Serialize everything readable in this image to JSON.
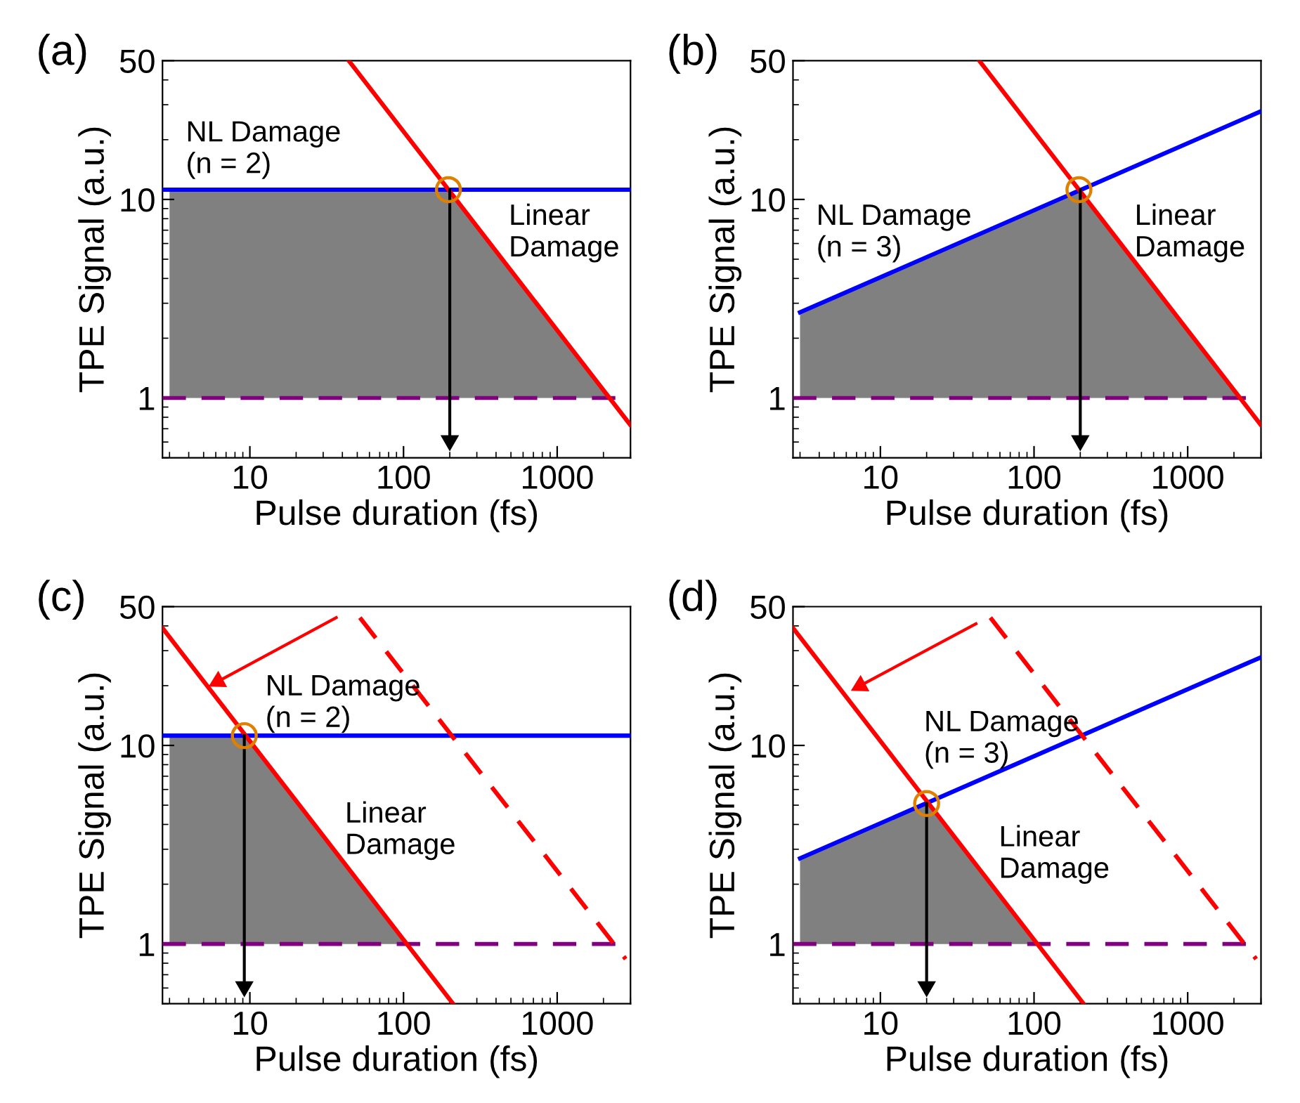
{
  "chart_data": [
    {
      "type": "line",
      "title": "(a)",
      "xlabel": "Pulse duration (fs)",
      "ylabel": "TPE Signal (a.u.)",
      "log": "xy",
      "xlim": [
        2.7,
        3000
      ],
      "ylim": [
        0.5,
        50
      ],
      "xticks": [
        10,
        100,
        1000
      ],
      "yticks": [
        1,
        10,
        50
      ],
      "grid": false,
      "legend": false,
      "series": [
        {
          "type": "area",
          "color": "#808080",
          "x": [
            3,
            196,
            2210
          ],
          "values": [
            11.2,
            11.2,
            1
          ]
        },
        {
          "color": "#0000ff",
          "x": [
            2.7,
            3000
          ],
          "values": [
            11.2,
            11.2
          ]
        },
        {
          "color": "#ff0000",
          "x": [
            44,
            3000
          ],
          "values": [
            50,
            0.73
          ]
        },
        {
          "color": "#000000",
          "marker": "triangle",
          "x": [
            200,
            200
          ],
          "values": [
            11.2,
            0.61
          ]
        },
        {
          "type": "scatter",
          "color": "#e08000",
          "marker": "circle",
          "x": [
            196
          ],
          "values": [
            11.2
          ]
        }
      ],
      "ref_lines": [
        {
          "axis": "y",
          "value": 1,
          "color": "#800080",
          "line_style": "dashed"
        }
      ],
      "annotations": [
        "NL Damage\n(n = 2)",
        "Linear\nDamage"
      ]
    },
    {
      "type": "line",
      "title": "(b)",
      "xlabel": "Pulse duration (fs)",
      "ylabel": "TPE Signal (a.u.)",
      "log": "xy",
      "xlim": [
        2.7,
        3000
      ],
      "ylim": [
        0.5,
        50
      ],
      "xticks": [
        10,
        100,
        1000
      ],
      "yticks": [
        1,
        10,
        50
      ],
      "grid": false,
      "legend": false,
      "series": [
        {
          "type": "area",
          "color": "#808080",
          "x": [
            3,
            196,
            2210
          ],
          "values": [
            2.7,
            11.2,
            1
          ]
        },
        {
          "color": "#0000ff",
          "x": [
            3,
            3000
          ],
          "values": [
            2.7,
            27.8
          ]
        },
        {
          "color": "#ff0000",
          "x": [
            44,
            3000
          ],
          "values": [
            50,
            0.73
          ]
        },
        {
          "color": "#000000",
          "marker": "triangle",
          "x": [
            200,
            200
          ],
          "values": [
            11.2,
            0.61
          ]
        },
        {
          "type": "scatter",
          "color": "#e08000",
          "marker": "circle",
          "x": [
            196
          ],
          "values": [
            11.2
          ]
        }
      ],
      "ref_lines": [
        {
          "axis": "y",
          "value": 1,
          "color": "#800080",
          "line_style": "dashed"
        }
      ],
      "annotations": [
        "NL Damage\n(n = 3)",
        "Linear\nDamage"
      ]
    },
    {
      "type": "line",
      "title": "(c)",
      "xlabel": "Pulse duration (fs)",
      "ylabel": "TPE Signal (a.u.)",
      "log": "xy",
      "xlim": [
        2.7,
        3000
      ],
      "ylim": [
        0.5,
        50
      ],
      "xticks": [
        10,
        100,
        1000
      ],
      "yticks": [
        1,
        10,
        50
      ],
      "grid": false,
      "legend": false,
      "series": [
        {
          "type": "area",
          "color": "#808080",
          "x": [
            3,
            9.4,
            105
          ],
          "values": [
            11.2,
            11.2,
            1
          ]
        },
        {
          "color": "#0000ff",
          "x": [
            2.7,
            3000
          ],
          "values": [
            11.2,
            11.2
          ]
        },
        {
          "color": "#ff0000",
          "x": [
            2.7,
            210
          ],
          "values": [
            39,
            0.5
          ]
        },
        {
          "color": "#ff0000",
          "line_style": "dashed",
          "x": [
            52,
            2790
          ],
          "values": [
            44,
            0.84
          ]
        },
        {
          "color": "#ff0000",
          "marker": "triangle",
          "x": [
            36.5,
            6.2
          ],
          "values": [
            44,
            21
          ]
        },
        {
          "color": "#000000",
          "marker": "triangle",
          "x": [
            9.2,
            9.2
          ],
          "values": [
            11.2,
            0.61
          ]
        },
        {
          "type": "scatter",
          "color": "#e08000",
          "marker": "circle",
          "x": [
            9.2
          ],
          "values": [
            11.2
          ]
        }
      ],
      "ref_lines": [
        {
          "axis": "y",
          "value": 1,
          "color": "#800080",
          "line_style": "dashed"
        }
      ],
      "annotations": [
        "NL Damage\n(n = 2)",
        "Linear\nDamage"
      ]
    },
    {
      "type": "line",
      "title": "(d)",
      "xlabel": "Pulse duration (fs)",
      "ylabel": "TPE Signal (a.u.)",
      "log": "xy",
      "xlim": [
        2.7,
        3000
      ],
      "ylim": [
        0.5,
        50
      ],
      "xticks": [
        10,
        100,
        1000
      ],
      "yticks": [
        1,
        10,
        50
      ],
      "grid": false,
      "legend": false,
      "series": [
        {
          "type": "area",
          "color": "#808080",
          "x": [
            3,
            20,
            105
          ],
          "values": [
            2.7,
            5.1,
            1
          ]
        },
        {
          "color": "#0000ff",
          "x": [
            3,
            3000
          ],
          "values": [
            2.7,
            27.8
          ]
        },
        {
          "color": "#ff0000",
          "x": [
            2.7,
            210
          ],
          "values": [
            39,
            0.5
          ]
        },
        {
          "color": "#ff0000",
          "line_style": "dashed",
          "x": [
            52,
            2790
          ],
          "values": [
            44,
            0.84
          ]
        },
        {
          "color": "#ff0000",
          "marker": "triangle",
          "x": [
            41.9,
            7.4
          ],
          "values": [
            41,
            20
          ]
        },
        {
          "color": "#000000",
          "marker": "triangle",
          "x": [
            20,
            20
          ],
          "values": [
            5.1,
            0.61
          ]
        },
        {
          "type": "scatter",
          "color": "#e08000",
          "marker": "circle",
          "x": [
            20
          ],
          "values": [
            5.1
          ]
        }
      ],
      "ref_lines": [
        {
          "axis": "y",
          "value": 1,
          "color": "#800080",
          "line_style": "dashed"
        }
      ],
      "annotations": [
        "NL Damage\n(n = 3)",
        "Linear\nDamage"
      ]
    }
  ]
}
